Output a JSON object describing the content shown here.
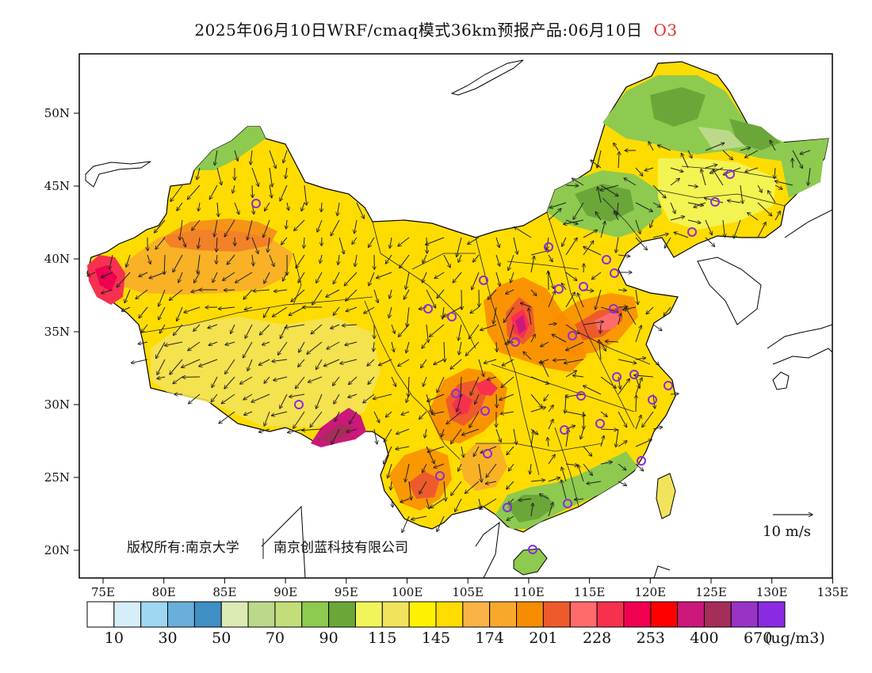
{
  "title": {
    "text": "2025年06月10日WRF/cmaq模式36km预报产品:06月10日",
    "species": "O3"
  },
  "axes": {
    "lat_ticks": [
      "50N",
      "45N",
      "40N",
      "35N",
      "30N",
      "25N",
      "20N"
    ],
    "lon_ticks": [
      "75E",
      "80E",
      "85E",
      "90E",
      "95E",
      "100E",
      "105E",
      "110E",
      "115E",
      "120E",
      "125E",
      "130E",
      "135E"
    ],
    "lon_range": [
      73,
      135
    ],
    "lat_range": [
      18,
      54
    ]
  },
  "copyright": {
    "part1": "版权所有:南京大学",
    "part2": "南京创蓝科技有限公司"
  },
  "wind_scale": {
    "label": "10 m/s"
  },
  "colorbar": {
    "unit": "(ug/m3)",
    "colors": [
      "#ffffff",
      "#d6eef9",
      "#9fd6f2",
      "#6aaedc",
      "#3f8ec4",
      "#dcebb4",
      "#bcd98a",
      "#c3de79",
      "#8dca4f",
      "#6aa738",
      "#f2f55a",
      "#f2e35c",
      "#fff200",
      "#ffdc00",
      "#f9b347",
      "#f8a92c",
      "#f88c00",
      "#ef5a2c",
      "#ff6b6b",
      "#f7304f",
      "#ef0050",
      "#fe0000",
      "#cb187a",
      "#a52d5a",
      "#9834c5",
      "#8a2be2"
    ],
    "labels": [
      "10",
      "30",
      "50",
      "70",
      "90",
      "115",
      "145",
      "174",
      "201",
      "228",
      "253",
      "400",
      "670"
    ]
  },
  "map_layers": {
    "land_fill": "#ffd700",
    "hotspot_colors": [
      "#f8a92c",
      "#ef5a2c",
      "#cb187a"
    ],
    "clean_colors": [
      "#8dca4f",
      "#f2f55a"
    ],
    "city_marker_color": "#8a2be2"
  }
}
